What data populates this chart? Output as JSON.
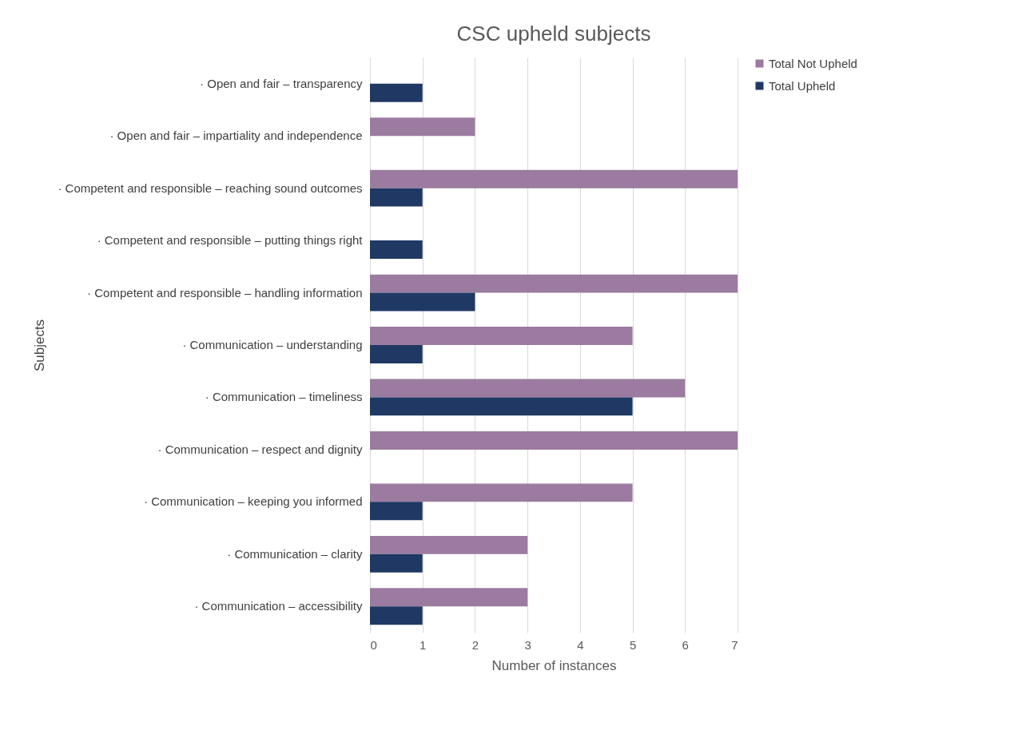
{
  "chart_data": {
    "type": "bar",
    "orientation": "horizontal",
    "title": "CSC upheld subjects",
    "xlabel": "Number of instances",
    "ylabel": "Subjects",
    "categories": [
      "· Open and fair – transparency",
      "· Open and fair – impartiality and independence",
      "· Competent and responsible – reaching sound outcomes",
      "· Competent and responsible – putting things right",
      "· Competent and responsible – handling information",
      "· Communication – understanding",
      "· Communication – timeliness",
      "· Communication – respect and dignity",
      "· Communication – keeping you informed",
      "· Communication – clarity",
      "· Communication – accessibility"
    ],
    "series": [
      {
        "name": "Total Not Upheld",
        "color": "#9b7b9f",
        "values": [
          null,
          2,
          7,
          null,
          7,
          5,
          6,
          7,
          5,
          3,
          3
        ]
      },
      {
        "name": "Total Upheld",
        "color": "#1f3864",
        "values": [
          1,
          null,
          1,
          1,
          2,
          1,
          5,
          null,
          1,
          1,
          1
        ]
      }
    ],
    "xlim": [
      0,
      7
    ],
    "xticks": [
      0,
      1,
      2,
      3,
      4,
      5,
      6,
      7
    ],
    "grid": "x",
    "legend": "right"
  }
}
